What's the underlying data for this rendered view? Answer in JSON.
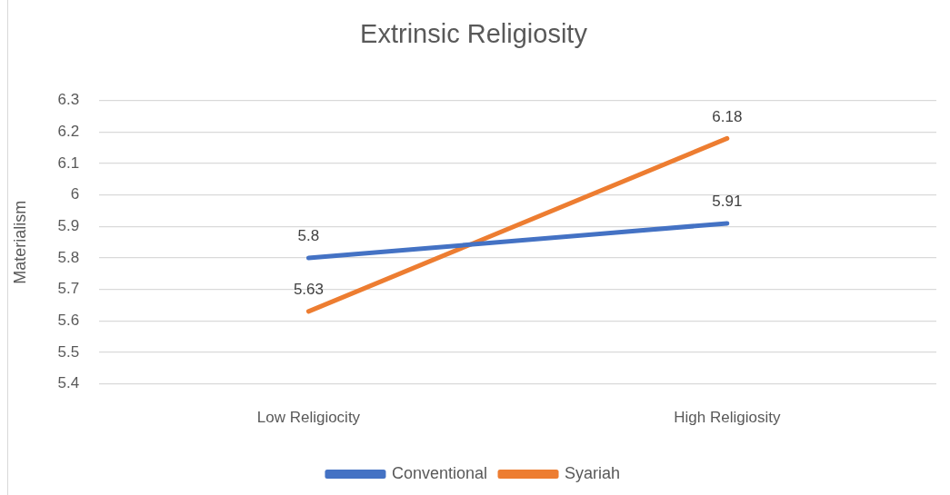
{
  "chart_data": {
    "type": "line",
    "title": "Extrinsic Religiosity",
    "ylabel": "Materialism",
    "categories": [
      "Low Religiocity",
      "High Religiosity"
    ],
    "series": [
      {
        "name": "Conventional",
        "color": "#4472c4",
        "values": [
          5.8,
          5.91
        ]
      },
      {
        "name": "Syariah",
        "color": "#ed7d31",
        "values": [
          5.63,
          6.18
        ]
      }
    ],
    "ylim": [
      5.4,
      6.3
    ],
    "yticks": [
      5.4,
      5.5,
      5.6,
      5.7,
      5.8,
      5.9,
      6,
      6.1,
      6.2,
      6.3
    ],
    "grid": "y",
    "legend": "bottom",
    "data_labels": true,
    "marker": "none",
    "line_style": "solid"
  }
}
